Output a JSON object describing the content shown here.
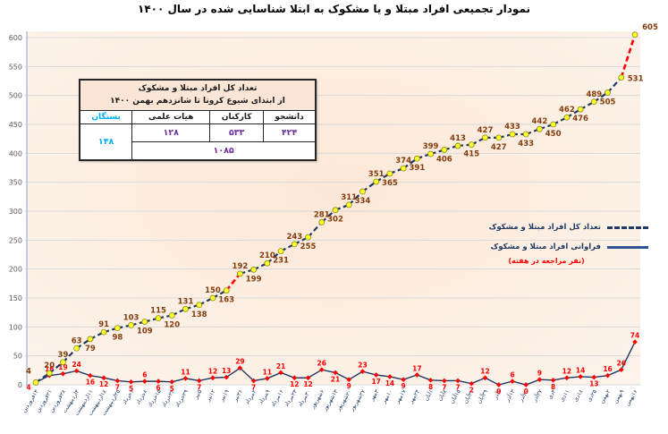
{
  "title": "نمودار تجمیعی افراد مبتلا و یا مشکوک به ابتلا شناسایی شده در سال ۱۴۰۰",
  "summary_table": {
    "title_line1": "تعداد کل افراد مبتلا و مشکوک",
    "title_line2": "از ابتدای شیوع کرونا تا شانزدهم بهمن ۱۴۰۰",
    "col_student": "دانشجو",
    "col_staff": "کارکنان",
    "col_faculty": "هیات علمی",
    "col_relatives": "بستگان",
    "val_student": "۴۲۴",
    "val_staff": "۵۳۳",
    "val_faculty": "۱۲۸",
    "val_relatives": "۱۴۸",
    "val_total": "۱۰۸۵"
  },
  "legend": {
    "total_label": "تعداد کل افراد مبتلا و مشکوک",
    "freq_label": "فراوانی افراد مبتلا و مشکوک",
    "freq_sub": "(نفر مراجعه در هفته)"
  },
  "chart_data": {
    "type": "line",
    "title": "نمودار تجمیعی افراد مبتلا و یا مشکوک به ابتلا شناسایی شده در سال ۱۴۰۰",
    "categories": [
      "۱۴فروردین",
      "۲۱فروردین",
      "۲۸فروردین",
      "۴اردیبهشت",
      "۱۱اردیبهشت",
      "۱۸اردیبهشت",
      "۲۵اردیبهشت",
      "۱خرداد",
      "۸خرداد",
      "۱۵خرداد",
      "۲۲خرداد",
      "۲۹خرداد",
      "۵تیر",
      "۱۲تیر",
      "۱۹تیر",
      "۲۶تیر",
      "۲مرداد",
      "۹مرداد",
      "۱۶مرداد",
      "۲۳مرداد",
      "۳۰مرداد",
      "۶شهریور",
      "۱۳شهریور",
      "۲۰شهریور",
      "۲۷شهریور",
      "۳مهر",
      "۱۰مهر",
      "۱۷مهر",
      "۲۴مهر",
      "۱آبان",
      "۸آبان",
      "۱۵آبان",
      "۲۲آبان",
      "۲۹آبان",
      "۶آذر",
      "۱۳آذر",
      "۲۰آذر",
      "۲۷آذر",
      "۴دی",
      "۱۱دی",
      "۱۸دی",
      "۲۵دی",
      "۲بهمن",
      "۹بهمن",
      "۱۶بهمن"
    ],
    "series": [
      {
        "name": "تعداد کل افراد مبتلا و مشکوک",
        "style": "dashed",
        "values": [
          4,
          20,
          39,
          63,
          79,
          91,
          98,
          103,
          109,
          115,
          120,
          131,
          138,
          150,
          163,
          192,
          199,
          210,
          231,
          243,
          255,
          281,
          302,
          311,
          334,
          351,
          365,
          374,
          391,
          399,
          406,
          413,
          415,
          427,
          427,
          433,
          433,
          442,
          450,
          462,
          476,
          489,
          505,
          531,
          605
        ]
      },
      {
        "name": "فراوانی افراد مبتلا و مشکوک (نفر مراجعه در هفته)",
        "style": "solid",
        "values": [
          4,
          16,
          19,
          24,
          16,
          12,
          7,
          5,
          6,
          6,
          5,
          11,
          7,
          12,
          13,
          29,
          7,
          11,
          21,
          12,
          12,
          26,
          21,
          9,
          23,
          17,
          14,
          9,
          17,
          8,
          7,
          7,
          2,
          12,
          0,
          6,
          0,
          9,
          8,
          12,
          14,
          13,
          16,
          26,
          74
        ]
      }
    ],
    "ylim": [
      0,
      600
    ],
    "ytick_step": 50,
    "grid": true,
    "legend_position": "middle-right",
    "highlight_segments": [
      14,
      43
    ],
    "colors": {
      "cumulative_line": "#1f3864",
      "weekly_line": "#1f3864",
      "highlight": "#ff0000",
      "marker_fill": "#ffff36",
      "marker_stroke": "#8a8a00",
      "weekly_marker": "#ff0000",
      "cumulative_label": "#843c0c",
      "weekly_label": "#ff0000",
      "plot_bg": "#fce8d8",
      "plot_bg_edge": "#fdf5ed",
      "grid": "#d9d9d9",
      "axis": "#95b3d7",
      "x_label": "#1f3864",
      "y_label": "#595959"
    }
  }
}
